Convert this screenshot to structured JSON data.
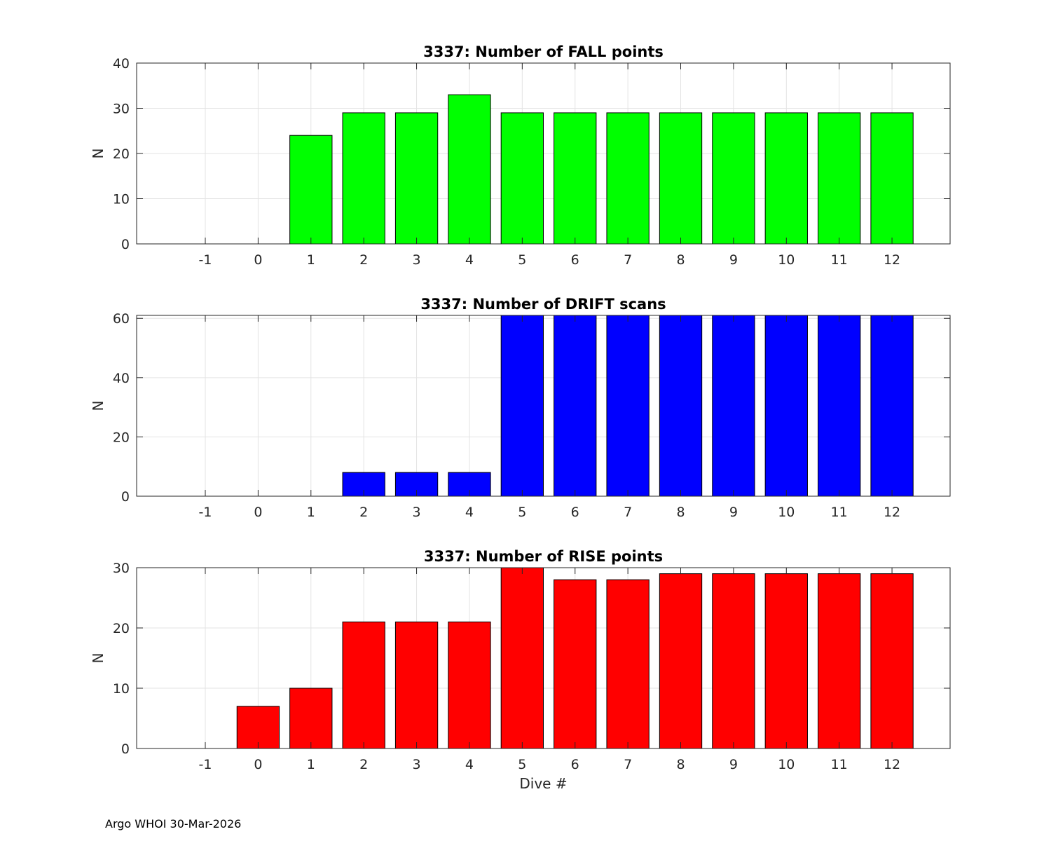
{
  "footer": "Argo WHOI 30-Mar-2026",
  "chart_data": [
    {
      "type": "bar",
      "title": "3337: Number of FALL points",
      "ylabel": "N",
      "xlabel": "",
      "color": "#00ff00",
      "grid": true,
      "categories": [
        -1,
        0,
        1,
        2,
        3,
        4,
        5,
        6,
        7,
        8,
        9,
        10,
        11,
        12
      ],
      "values": [
        0,
        0,
        24,
        29,
        29,
        33,
        29,
        29,
        29,
        29,
        29,
        29,
        29,
        29
      ],
      "xlim": [
        -2.3,
        13.1
      ],
      "ylim": [
        0,
        40
      ],
      "yticks": [
        0,
        10,
        20,
        30,
        40
      ]
    },
    {
      "type": "bar",
      "title": "3337: Number of DRIFT scans",
      "ylabel": "N",
      "xlabel": "",
      "color": "#0000ff",
      "grid": true,
      "categories": [
        -1,
        0,
        1,
        2,
        3,
        4,
        5,
        6,
        7,
        8,
        9,
        10,
        11,
        12
      ],
      "values": [
        0,
        0,
        0,
        8,
        8,
        8,
        61,
        61,
        61,
        61,
        61,
        61,
        61,
        61
      ],
      "xlim": [
        -2.3,
        13.1
      ],
      "ylim": [
        0,
        61
      ],
      "yticks": [
        0,
        20,
        40,
        60
      ]
    },
    {
      "type": "bar",
      "title": "3337: Number of RISE points",
      "ylabel": "N",
      "xlabel": "Dive #",
      "color": "#ff0000",
      "grid": true,
      "categories": [
        -1,
        0,
        1,
        2,
        3,
        4,
        5,
        6,
        7,
        8,
        9,
        10,
        11,
        12
      ],
      "values": [
        0,
        7,
        10,
        21,
        21,
        21,
        30,
        28,
        28,
        29,
        29,
        29,
        29,
        29
      ],
      "xlim": [
        -2.3,
        13.1
      ],
      "ylim": [
        0,
        30
      ],
      "yticks": [
        0,
        10,
        20,
        30
      ]
    }
  ]
}
